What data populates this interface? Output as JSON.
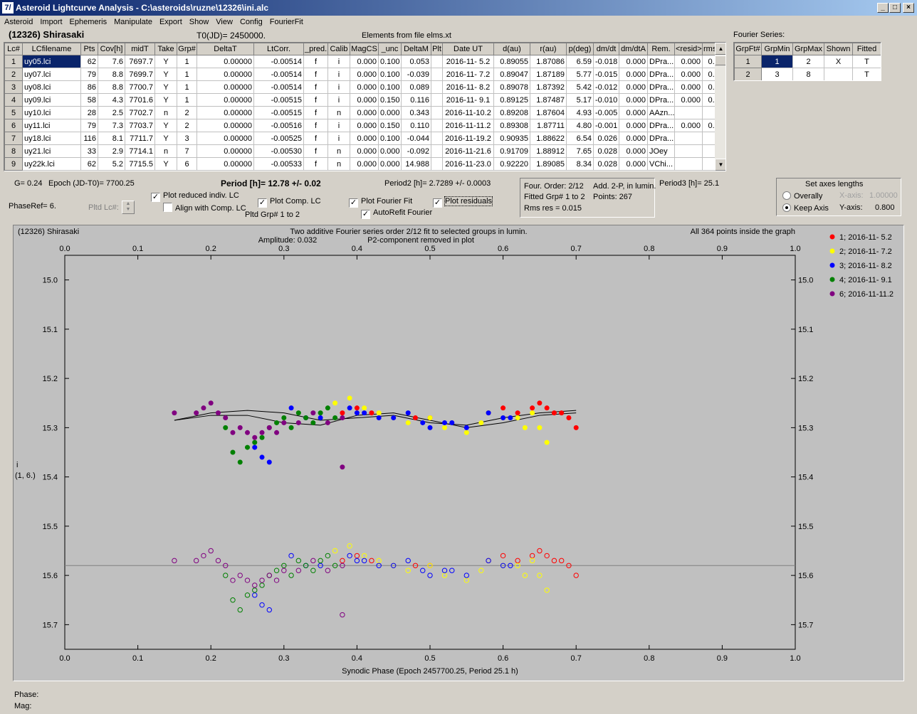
{
  "window": {
    "title": "Asteroid Lightcurve Analysis - C:\\asteroids\\ruzne\\12326\\ini.alc",
    "icon_text": "7/",
    "min": "_",
    "max": "□",
    "close": "×"
  },
  "menu": [
    "Asteroid",
    "Import",
    "Ephemeris",
    "Manipulate",
    "Export",
    "Show",
    "View",
    "Config",
    "FourierFit"
  ],
  "header": {
    "asteroid": "(12326) Shirasaki",
    "t0": "T0(JD)= 2450000.",
    "elements": "Elements from file elms.xt",
    "fourier_series": "Fourier Series:"
  },
  "lc_table": {
    "columns": [
      "Lc#",
      "LCfilename",
      "Pts",
      "Cov[h]",
      "midT",
      "Take",
      "Grp#",
      "DeltaT",
      "LtCorr.",
      "_pred.",
      "Calib",
      "MagCS",
      "_unc",
      "DeltaM",
      "Plt",
      "Date UT",
      "d(au)",
      "r(au)",
      "p(deg)",
      "dm/dt",
      "dm/dtA",
      "Rem.",
      "<resid>",
      "rms res"
    ],
    "rows": [
      [
        "1",
        "uy05.lci",
        "62",
        "7.6",
        "7697.7",
        "Y",
        "1",
        "0.00000",
        "-0.00514",
        "f",
        "i",
        "0.000",
        "0.100",
        "0.053",
        "",
        "2016-11- 5.2",
        "0.89055",
        "1.87086",
        "6.59",
        "-0.018",
        "0.000",
        "DPra...",
        "0.000",
        "0.012"
      ],
      [
        "2",
        "uy07.lci",
        "79",
        "8.8",
        "7699.7",
        "Y",
        "1",
        "0.00000",
        "-0.00514",
        "f",
        "i",
        "0.000",
        "0.100",
        "-0.039",
        "",
        "2016-11- 7.2",
        "0.89047",
        "1.87189",
        "5.77",
        "-0.015",
        "0.000",
        "DPra...",
        "0.000",
        "0.012"
      ],
      [
        "3",
        "uy08.lci",
        "86",
        "8.8",
        "7700.7",
        "Y",
        "1",
        "0.00000",
        "-0.00514",
        "f",
        "i",
        "0.000",
        "0.100",
        "0.089",
        "",
        "2016-11- 8.2",
        "0.89078",
        "1.87392",
        "5.42",
        "-0.012",
        "0.000",
        "DPra...",
        "0.000",
        "0.013"
      ],
      [
        "4",
        "uy09.lci",
        "58",
        "4.3",
        "7701.6",
        "Y",
        "1",
        "0.00000",
        "-0.00515",
        "f",
        "i",
        "0.000",
        "0.150",
        "0.116",
        "",
        "2016-11- 9.1",
        "0.89125",
        "1.87487",
        "5.17",
        "-0.010",
        "0.000",
        "DPra...",
        "0.000",
        "0.013"
      ],
      [
        "5",
        "uy10.lci",
        "28",
        "2.5",
        "7702.7",
        "n",
        "2",
        "0.00000",
        "-0.00515",
        "f",
        "n",
        "0.000",
        "0.000",
        "0.343",
        "",
        "2016-11-10.2",
        "0.89208",
        "1.87604",
        "4.93",
        "-0.005",
        "0.000",
        "AAzn...",
        "",
        ""
      ],
      [
        "6",
        "uy11.lci",
        "79",
        "7.3",
        "7703.7",
        "Y",
        "2",
        "0.00000",
        "-0.00516",
        "f",
        "i",
        "0.000",
        "0.150",
        "0.110",
        "",
        "2016-11-11.2",
        "0.89308",
        "1.87711",
        "4.80",
        "-0.001",
        "0.000",
        "DPra...",
        "0.000",
        "0.018"
      ],
      [
        "7",
        "uy18.lci",
        "116",
        "8.1",
        "7711.7",
        "Y",
        "3",
        "0.00000",
        "-0.00525",
        "f",
        "i",
        "0.000",
        "0.100",
        "-0.044",
        "",
        "2016-11-19.2",
        "0.90935",
        "1.88622",
        "6.54",
        "0.026",
        "0.000",
        "DPra...",
        "",
        ""
      ],
      [
        "8",
        "uy21.lci",
        "33",
        "2.9",
        "7714.1",
        "n",
        "7",
        "0.00000",
        "-0.00530",
        "f",
        "n",
        "0.000",
        "0.000",
        "-0.092",
        "",
        "2016-11-21.6",
        "0.91709",
        "1.88912",
        "7.65",
        "0.028",
        "0.000",
        "JOey",
        "",
        ""
      ],
      [
        "9",
        "uy22k.lci",
        "62",
        "5.2",
        "7715.5",
        "Y",
        "6",
        "0.00000",
        "-0.00533",
        "f",
        "n",
        "0.000",
        "0.000",
        "14.988",
        "",
        "2016-11-23.0",
        "0.92220",
        "1.89085",
        "8.34",
        "0.028",
        "0.000",
        "VChi...",
        "",
        ""
      ]
    ]
  },
  "fourier_table": {
    "columns": [
      "GrpFt#",
      "GrpMin",
      "GrpMax",
      "Shown",
      "Fitted"
    ],
    "rows": [
      [
        "1",
        "1",
        "2",
        "X",
        "T"
      ],
      [
        "2",
        "3",
        "8",
        "",
        "T"
      ]
    ]
  },
  "controls": {
    "g": "G= 0.24",
    "epoch": "Epoch (JD-T0)= 7700.25",
    "period": "Period [h]= 12.78 +/- 0.02",
    "period2": "Period2 [h]= 2.7289 +/- 0.0003",
    "period3": "Period3 [h]= 25.1",
    "phaseref": "PhaseRef= 6.",
    "pltd_lc": "Pltd Lc#:",
    "cb_reduced": "Plot reduced indiv. LC",
    "cb_align": "Align with Comp. LC",
    "cb_comp": "Plot Comp. LC",
    "pltd_grp": "Pltd Grp#  1   to   2",
    "cb_fourier": "Plot Fourier Fit",
    "cb_autorefit": "AutoRefit Fourier",
    "cb_residuals": "Plot residuals",
    "info": {
      "four_order": "Four. Order:  2/12",
      "add": "Add. 2-P, in lumin.",
      "fitted": "Fitted Grp# 1 to 2",
      "points": "Points: 267",
      "rms": "Rms res     = 0.015"
    },
    "axes": {
      "title": "Set axes lengths",
      "overally": "Overally",
      "keep": "Keep Axis",
      "xaxis_label": "X-axis:",
      "xaxis_val": "1.00000",
      "yaxis_label": "Y-axis:",
      "yaxis_val": "0.800"
    }
  },
  "plot": {
    "name": "(12326) Shirasaki",
    "caption1": "Two additive Fourier series order 2/12 fit to selected groups in lumin.",
    "caption2": "Amplitude: 0.032",
    "caption3": "P2-component removed in plot",
    "inside": "All 364 points inside the graph",
    "ylabel1": "i",
    "ylabel2": "(1, 6.)",
    "xlabel": "Synodic Phase (Epoch 2457700.25, Period 25.1 h)",
    "phase_label": "Phase:",
    "mag_label": "Mag:"
  },
  "chart_data": {
    "type": "scatter",
    "xlim": [
      0.0,
      1.0
    ],
    "ylim": [
      15.75,
      14.95
    ],
    "x_ticks": [
      "0.0",
      "0.1",
      "0.2",
      "0.3",
      "0.4",
      "0.5",
      "0.6",
      "0.7",
      "0.8",
      "0.9",
      "1.0"
    ],
    "y_ticks": [
      "15.0",
      "15.1",
      "15.2",
      "15.3",
      "15.4",
      "15.5",
      "15.6",
      "15.7"
    ],
    "residual_baseline": 15.58,
    "residual_offset": 0.3,
    "legend_placement": "right",
    "series": [
      {
        "name": "1; 2016-11- 5.2",
        "color": "#ff0000",
        "x": [
          0.38,
          0.4,
          0.42,
          0.48,
          0.5,
          0.58,
          0.6,
          0.62,
          0.64,
          0.65,
          0.66,
          0.67,
          0.68,
          0.69,
          0.7
        ],
        "y": [
          15.27,
          15.26,
          15.27,
          15.28,
          15.28,
          15.27,
          15.26,
          15.27,
          15.26,
          15.25,
          15.26,
          15.27,
          15.27,
          15.28,
          15.3
        ]
      },
      {
        "name": "2; 2016-11- 7.2",
        "color": "#ffff00",
        "x": [
          0.37,
          0.39,
          0.41,
          0.43,
          0.45,
          0.47,
          0.5,
          0.52,
          0.55,
          0.57,
          0.58,
          0.6,
          0.62,
          0.63,
          0.64,
          0.65,
          0.66
        ],
        "y": [
          15.25,
          15.24,
          15.26,
          15.27,
          15.28,
          15.29,
          15.28,
          15.3,
          15.31,
          15.29,
          15.27,
          15.28,
          15.28,
          15.3,
          15.27,
          15.3,
          15.33
        ]
      },
      {
        "name": "3; 2016-11- 8.2",
        "color": "#0000ff",
        "x": [
          0.26,
          0.27,
          0.28,
          0.31,
          0.33,
          0.35,
          0.39,
          0.4,
          0.41,
          0.43,
          0.45,
          0.47,
          0.49,
          0.5,
          0.52,
          0.53,
          0.55,
          0.58,
          0.6,
          0.61
        ],
        "y": [
          15.34,
          15.36,
          15.37,
          15.26,
          15.28,
          15.28,
          15.26,
          15.27,
          15.27,
          15.28,
          15.28,
          15.27,
          15.29,
          15.3,
          15.29,
          15.29,
          15.3,
          15.27,
          15.28,
          15.28
        ]
      },
      {
        "name": "4; 2016-11- 9.1",
        "color": "#008000",
        "x": [
          0.22,
          0.23,
          0.24,
          0.25,
          0.26,
          0.27,
          0.28,
          0.29,
          0.3,
          0.31,
          0.32,
          0.33,
          0.34,
          0.35,
          0.36,
          0.37
        ],
        "y": [
          15.3,
          15.35,
          15.37,
          15.34,
          15.33,
          15.32,
          15.3,
          15.29,
          15.28,
          15.3,
          15.27,
          15.28,
          15.29,
          15.27,
          15.26,
          15.28
        ]
      },
      {
        "name": "6; 2016-11-11.2",
        "color": "#800080",
        "x": [
          0.15,
          0.18,
          0.19,
          0.2,
          0.21,
          0.22,
          0.23,
          0.24,
          0.25,
          0.26,
          0.27,
          0.28,
          0.29,
          0.3,
          0.32,
          0.34,
          0.36,
          0.38,
          0.38
        ],
        "y": [
          15.27,
          15.27,
          15.26,
          15.25,
          15.27,
          15.28,
          15.31,
          15.3,
          15.31,
          15.32,
          15.31,
          15.3,
          15.31,
          15.29,
          15.29,
          15.27,
          15.29,
          15.28,
          15.38
        ]
      }
    ],
    "fourier_lines": [
      {
        "name": "fit-a",
        "x": [
          0.15,
          0.2,
          0.25,
          0.3,
          0.35,
          0.4,
          0.45,
          0.5,
          0.55,
          0.6,
          0.65,
          0.7
        ],
        "y": [
          15.285,
          15.27,
          15.265,
          15.27,
          15.285,
          15.28,
          15.275,
          15.29,
          15.295,
          15.28,
          15.27,
          15.265
        ]
      },
      {
        "name": "fit-b",
        "x": [
          0.15,
          0.2,
          0.25,
          0.3,
          0.35,
          0.4,
          0.45,
          0.5,
          0.55,
          0.6,
          0.65,
          0.7
        ],
        "y": [
          15.285,
          15.275,
          15.275,
          15.29,
          15.295,
          15.275,
          15.27,
          15.285,
          15.3,
          15.29,
          15.275,
          15.27
        ]
      }
    ]
  }
}
